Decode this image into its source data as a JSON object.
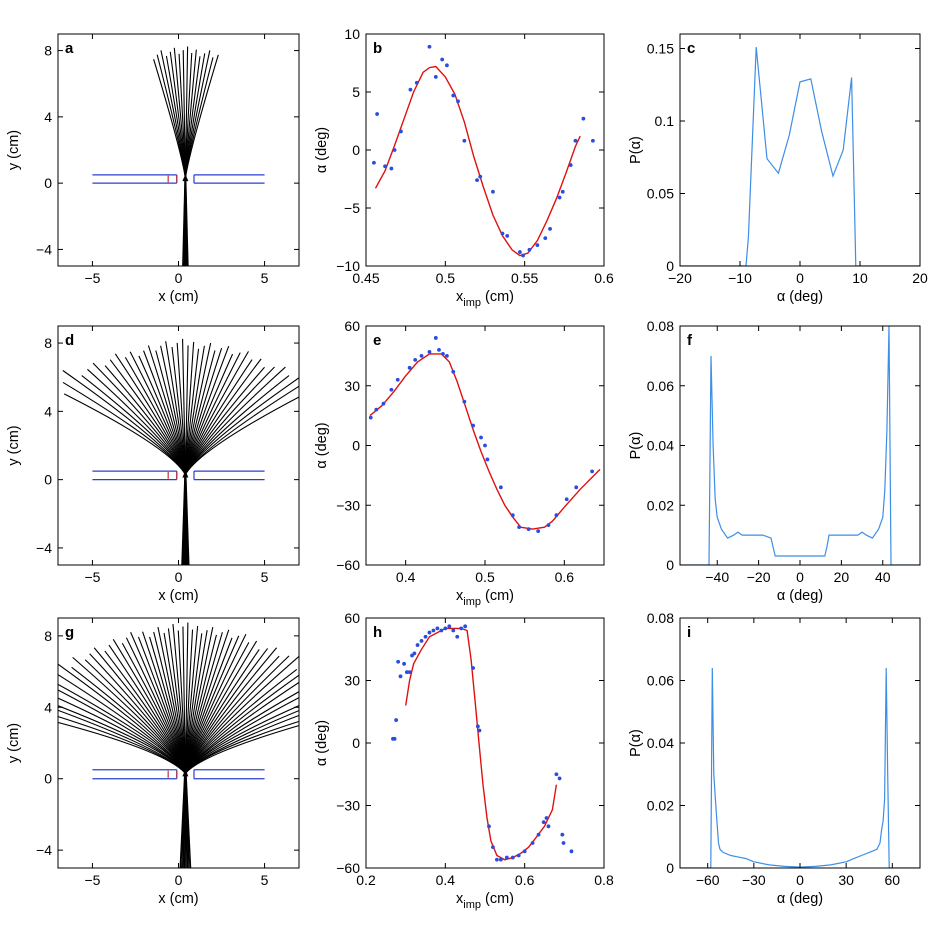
{
  "figure": {
    "description_colors": {
      "traj": "#000000",
      "channel": "#2a3fcf",
      "fit": "#e01010",
      "dots": "#2b4ce0",
      "dist": "#3d8ee6",
      "gate": "#c03030"
    }
  },
  "chart_data": [
    {
      "id": "a",
      "type": "line",
      "panel_label": "a",
      "xlabel": "x (cm)",
      "ylabel": "y (cm)",
      "xlim": [
        -7,
        7
      ],
      "ylim": [
        -5,
        9
      ],
      "xticks": [
        -5,
        0,
        5
      ],
      "yticks": [
        -4,
        0,
        4,
        8
      ],
      "xtick_labels": [
        "−5",
        "0",
        "5"
      ],
      "ytick_labels": [
        "−4",
        "0",
        "4",
        "8"
      ],
      "fan": {
        "origin": [
          0.4,
          0.3
        ],
        "n_lines": 16,
        "spread_deg": 14,
        "end_y": 8,
        "incoming_x": [
          0.25,
          0.55
        ]
      }
    },
    {
      "id": "b",
      "type": "scatter",
      "panel_label": "b",
      "xlabel": "x",
      "xlabel_sub": "imp",
      "xlabel_unit": " (cm)",
      "ylabel": "α (deg)",
      "xlim": [
        0.45,
        0.6
      ],
      "ylim": [
        -10,
        10
      ],
      "xticks": [
        0.45,
        0.5,
        0.55,
        0.6
      ],
      "yticks": [
        -10,
        -5,
        0,
        5,
        10
      ],
      "xtick_labels": [
        "0.45",
        "0.5",
        "0.55",
        "0.6"
      ],
      "ytick_labels": [
        "−10",
        "−5",
        "0",
        "5",
        "10"
      ],
      "points": [
        [
          0.455,
          -1.1
        ],
        [
          0.457,
          3.1
        ],
        [
          0.462,
          -1.4
        ],
        [
          0.466,
          -1.6
        ],
        [
          0.468,
          0.0
        ],
        [
          0.472,
          1.6
        ],
        [
          0.478,
          5.2
        ],
        [
          0.482,
          5.8
        ],
        [
          0.49,
          8.9
        ],
        [
          0.494,
          6.3
        ],
        [
          0.498,
          7.8
        ],
        [
          0.501,
          7.3
        ],
        [
          0.505,
          4.7
        ],
        [
          0.508,
          4.2
        ],
        [
          0.512,
          0.8
        ],
        [
          0.52,
          -2.6
        ],
        [
          0.522,
          -2.3
        ],
        [
          0.53,
          -3.6
        ],
        [
          0.536,
          -7.2
        ],
        [
          0.539,
          -7.4
        ],
        [
          0.547,
          -8.8
        ],
        [
          0.549,
          -9.1
        ],
        [
          0.553,
          -8.6
        ],
        [
          0.558,
          -8.2
        ],
        [
          0.563,
          -7.6
        ],
        [
          0.566,
          -6.8
        ],
        [
          0.572,
          -4.1
        ],
        [
          0.574,
          -3.6
        ],
        [
          0.579,
          -1.3
        ],
        [
          0.582,
          0.8
        ],
        [
          0.587,
          2.7
        ],
        [
          0.593,
          0.8
        ]
      ],
      "fit_line": [
        [
          0.456,
          -3.3
        ],
        [
          0.462,
          -1.8
        ],
        [
          0.468,
          0.4
        ],
        [
          0.474,
          2.7
        ],
        [
          0.48,
          5.0
        ],
        [
          0.486,
          6.7
        ],
        [
          0.49,
          7.1
        ],
        [
          0.494,
          7.2
        ],
        [
          0.5,
          6.3
        ],
        [
          0.506,
          4.8
        ],
        [
          0.512,
          2.4
        ],
        [
          0.518,
          -0.6
        ],
        [
          0.524,
          -3.2
        ],
        [
          0.53,
          -5.6
        ],
        [
          0.536,
          -7.4
        ],
        [
          0.542,
          -8.6
        ],
        [
          0.547,
          -9.1
        ],
        [
          0.552,
          -8.9
        ],
        [
          0.558,
          -7.8
        ],
        [
          0.564,
          -6.1
        ],
        [
          0.57,
          -4.2
        ],
        [
          0.576,
          -2.0
        ],
        [
          0.582,
          0.3
        ],
        [
          0.585,
          1.2
        ]
      ]
    },
    {
      "id": "c",
      "type": "line",
      "panel_label": "c",
      "xlabel": "α (deg)",
      "ylabel": "P(α)",
      "xlim": [
        -20,
        20
      ],
      "ylim": [
        0,
        0.16
      ],
      "xticks": [
        -20,
        -10,
        0,
        10,
        20
      ],
      "yticks": [
        0,
        0.05,
        0.1,
        0.15
      ],
      "xtick_labels": [
        "−20",
        "−10",
        "0",
        "10",
        "20"
      ],
      "ytick_labels": [
        "0",
        "0.05",
        "0.1",
        "0.15"
      ],
      "x": [
        -20,
        -9,
        -8.6,
        -7.3,
        -5.5,
        -3.6,
        -1.8,
        0,
        1.8,
        3.6,
        5.5,
        7.2,
        8.6,
        9.3,
        20
      ],
      "y": [
        0,
        0,
        0.02,
        0.151,
        0.074,
        0.064,
        0.09,
        0.127,
        0.129,
        0.093,
        0.062,
        0.08,
        0.13,
        0.0,
        0
      ]
    },
    {
      "id": "d",
      "type": "line",
      "panel_label": "d",
      "xlabel": "x (cm)",
      "ylabel": "y (cm)",
      "xlim": [
        -7,
        7
      ],
      "ylim": [
        -5,
        9
      ],
      "xticks": [
        -5,
        0,
        5
      ],
      "yticks": [
        -4,
        0,
        4,
        8
      ],
      "xtick_labels": [
        "−5",
        "0",
        "5"
      ],
      "ytick_labels": [
        "−4",
        "0",
        "4",
        "8"
      ],
      "fan": {
        "origin": [
          0.4,
          0.3
        ],
        "n_lines": 40,
        "spread_deg": 46,
        "end_y": 8,
        "incoming_x": [
          0.2,
          0.6
        ]
      }
    },
    {
      "id": "e",
      "type": "scatter",
      "panel_label": "e",
      "xlabel": "x",
      "xlabel_sub": "imp",
      "xlabel_unit": " (cm)",
      "ylabel": "α (deg)",
      "xlim": [
        0.35,
        0.65
      ],
      "ylim": [
        -60,
        60
      ],
      "xticks": [
        0.4,
        0.5,
        0.6
      ],
      "yticks": [
        -60,
        -30,
        0,
        30,
        60
      ],
      "xtick_labels": [
        "0.4",
        "0.5",
        "0.6"
      ],
      "ytick_labels": [
        "−60",
        "−30",
        "0",
        "30",
        "60"
      ],
      "points": [
        [
          0.356,
          14
        ],
        [
          0.363,
          18
        ],
        [
          0.372,
          21
        ],
        [
          0.382,
          28
        ],
        [
          0.39,
          33
        ],
        [
          0.405,
          39
        ],
        [
          0.412,
          43
        ],
        [
          0.42,
          45
        ],
        [
          0.43,
          47
        ],
        [
          0.438,
          54
        ],
        [
          0.442,
          48
        ],
        [
          0.447,
          46
        ],
        [
          0.452,
          45
        ],
        [
          0.46,
          37
        ],
        [
          0.474,
          22
        ],
        [
          0.485,
          10
        ],
        [
          0.495,
          4
        ],
        [
          0.5,
          0
        ],
        [
          0.503,
          -7
        ],
        [
          0.52,
          -21
        ],
        [
          0.535,
          -35
        ],
        [
          0.543,
          -41
        ],
        [
          0.555,
          -42
        ],
        [
          0.567,
          -43
        ],
        [
          0.58,
          -40
        ],
        [
          0.59,
          -35
        ],
        [
          0.603,
          -27
        ],
        [
          0.615,
          -21
        ],
        [
          0.635,
          -13
        ]
      ],
      "fit_line": [
        [
          0.355,
          15
        ],
        [
          0.37,
          20
        ],
        [
          0.385,
          27
        ],
        [
          0.4,
          35
        ],
        [
          0.415,
          42
        ],
        [
          0.43,
          46
        ],
        [
          0.445,
          46
        ],
        [
          0.455,
          42
        ],
        [
          0.465,
          32
        ],
        [
          0.475,
          20
        ],
        [
          0.485,
          8
        ],
        [
          0.495,
          -3
        ],
        [
          0.505,
          -13
        ],
        [
          0.515,
          -22
        ],
        [
          0.525,
          -30
        ],
        [
          0.535,
          -36
        ],
        [
          0.545,
          -41
        ],
        [
          0.56,
          -42
        ],
        [
          0.575,
          -41
        ],
        [
          0.585,
          -38
        ],
        [
          0.6,
          -31
        ],
        [
          0.62,
          -22
        ],
        [
          0.645,
          -12
        ]
      ]
    },
    {
      "id": "f",
      "type": "line",
      "panel_label": "f",
      "xlabel": "α (deg)",
      "ylabel": "P(α)",
      "xlim": [
        -58,
        58
      ],
      "ylim": [
        0,
        0.08
      ],
      "xticks": [
        -40,
        -20,
        0,
        20,
        40
      ],
      "yticks": [
        0,
        0.02,
        0.04,
        0.06,
        0.08
      ],
      "xtick_labels": [
        "−40",
        "−20",
        "0",
        "20",
        "40"
      ],
      "ytick_labels": [
        "0",
        "0.02",
        "0.04",
        "0.06",
        "0.08"
      ],
      "x": [
        -58,
        -44,
        -43,
        -42,
        -41,
        -40,
        -38,
        -35,
        -32,
        -30,
        -28,
        -26,
        -22,
        -18,
        -14,
        -13,
        -12,
        0,
        12,
        13,
        14,
        18,
        22,
        26,
        28,
        30,
        32,
        35,
        38,
        40,
        41,
        42,
        43,
        44,
        58
      ],
      "y": [
        0,
        0,
        0.07,
        0.04,
        0.022,
        0.016,
        0.012,
        0.009,
        0.01,
        0.011,
        0.01,
        0.01,
        0.01,
        0.01,
        0.009,
        0.006,
        0.003,
        0.003,
        0.003,
        0.006,
        0.01,
        0.01,
        0.01,
        0.01,
        0.01,
        0.011,
        0.01,
        0.009,
        0.012,
        0.016,
        0.025,
        0.045,
        0.08,
        0,
        0
      ]
    },
    {
      "id": "g",
      "type": "line",
      "panel_label": "g",
      "xlabel": "x (cm)",
      "ylabel": "y (cm)",
      "xlim": [
        -7,
        7
      ],
      "ylim": [
        -5,
        9
      ],
      "xticks": [
        -5,
        0,
        5
      ],
      "yticks": [
        -4,
        0,
        4,
        8
      ],
      "xtick_labels": [
        "−5",
        "0",
        "5"
      ],
      "ytick_labels": [
        "−4",
        "0",
        "4",
        "8"
      ],
      "fan": {
        "origin": [
          0.4,
          0.3
        ],
        "n_lines": 60,
        "spread_deg": 58,
        "end_y": 8.5,
        "incoming_x": [
          0.1,
          0.7
        ]
      }
    },
    {
      "id": "h",
      "type": "scatter",
      "panel_label": "h",
      "xlabel": "x",
      "xlabel_sub": "imp",
      "xlabel_unit": " (cm)",
      "ylabel": "α (deg)",
      "xlim": [
        0.2,
        0.8
      ],
      "ylim": [
        -60,
        60
      ],
      "xticks": [
        0.2,
        0.4,
        0.6,
        0.8
      ],
      "yticks": [
        -60,
        -30,
        0,
        30,
        60
      ],
      "xtick_labels": [
        "0.2",
        "0.4",
        "0.6",
        "0.8"
      ],
      "ytick_labels": [
        "−60",
        "−30",
        "0",
        "30",
        "60"
      ],
      "points": [
        [
          0.268,
          2
        ],
        [
          0.272,
          2
        ],
        [
          0.276,
          11
        ],
        [
          0.281,
          39
        ],
        [
          0.287,
          32
        ],
        [
          0.296,
          38
        ],
        [
          0.303,
          34
        ],
        [
          0.31,
          34
        ],
        [
          0.316,
          42
        ],
        [
          0.322,
          43
        ],
        [
          0.33,
          47
        ],
        [
          0.34,
          49
        ],
        [
          0.35,
          51
        ],
        [
          0.36,
          53
        ],
        [
          0.37,
          54
        ],
        [
          0.38,
          55
        ],
        [
          0.39,
          54
        ],
        [
          0.4,
          55
        ],
        [
          0.41,
          56
        ],
        [
          0.42,
          54
        ],
        [
          0.43,
          51
        ],
        [
          0.44,
          55
        ],
        [
          0.45,
          56
        ],
        [
          0.47,
          36
        ],
        [
          0.482,
          8
        ],
        [
          0.486,
          6
        ],
        [
          0.51,
          -40
        ],
        [
          0.52,
          -50
        ],
        [
          0.53,
          -56
        ],
        [
          0.54,
          -56
        ],
        [
          0.555,
          -55
        ],
        [
          0.57,
          -55
        ],
        [
          0.585,
          -54
        ],
        [
          0.6,
          -52
        ],
        [
          0.62,
          -48
        ],
        [
          0.635,
          -44
        ],
        [
          0.648,
          -38
        ],
        [
          0.655,
          -36
        ],
        [
          0.66,
          -40
        ],
        [
          0.68,
          -15
        ],
        [
          0.688,
          -17
        ],
        [
          0.695,
          -44
        ],
        [
          0.698,
          -48
        ],
        [
          0.718,
          -52
        ]
      ],
      "fit_line": [
        [
          0.3,
          18
        ],
        [
          0.31,
          30
        ],
        [
          0.32,
          38
        ],
        [
          0.34,
          45
        ],
        [
          0.36,
          51
        ],
        [
          0.38,
          53
        ],
        [
          0.4,
          55
        ],
        [
          0.42,
          55
        ],
        [
          0.44,
          55
        ],
        [
          0.455,
          54
        ],
        [
          0.465,
          40
        ],
        [
          0.475,
          20
        ],
        [
          0.485,
          0
        ],
        [
          0.495,
          -20
        ],
        [
          0.505,
          -36
        ],
        [
          0.515,
          -47
        ],
        [
          0.53,
          -54
        ],
        [
          0.55,
          -56
        ],
        [
          0.57,
          -55
        ],
        [
          0.59,
          -53
        ],
        [
          0.61,
          -50
        ],
        [
          0.63,
          -45
        ],
        [
          0.65,
          -40
        ],
        [
          0.67,
          -32
        ],
        [
          0.68,
          -20
        ]
      ]
    },
    {
      "id": "i",
      "type": "line",
      "panel_label": "i",
      "xlabel": "α (deg)",
      "ylabel": "P(α)",
      "xlim": [
        -78,
        78
      ],
      "ylim": [
        0,
        0.08
      ],
      "xticks": [
        -60,
        -30,
        0,
        30,
        60
      ],
      "yticks": [
        0,
        0.02,
        0.04,
        0.06,
        0.08
      ],
      "xtick_labels": [
        "−60",
        "−30",
        "0",
        "30",
        "60"
      ],
      "ytick_labels": [
        "0",
        "0.02",
        "0.04",
        "0.06",
        "0.08"
      ],
      "x": [
        -78,
        -58,
        -57,
        -56,
        -55,
        -54,
        -53,
        -52,
        -50,
        -45,
        -40,
        -35,
        -30,
        -20,
        -10,
        0,
        10,
        20,
        30,
        35,
        40,
        45,
        50,
        52,
        53,
        54,
        55,
        56,
        57,
        58,
        78
      ],
      "y": [
        0,
        0,
        0.064,
        0.03,
        0.022,
        0.015,
        0.008,
        0.006,
        0.005,
        0.004,
        0.0035,
        0.003,
        0.002,
        0.001,
        0.0005,
        0.0003,
        0.0005,
        0.001,
        0.002,
        0.003,
        0.004,
        0.005,
        0.006,
        0.008,
        0.012,
        0.015,
        0.022,
        0.064,
        0.03,
        0,
        0
      ]
    }
  ]
}
